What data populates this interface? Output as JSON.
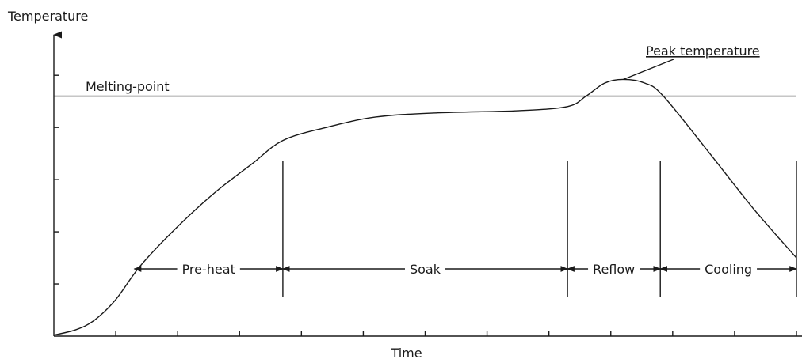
{
  "chart_data": {
    "type": "line",
    "title": "",
    "xlabel": "Time",
    "ylabel": "Temperature",
    "grid": false,
    "xlim": [
      0,
      12
    ],
    "ylim": [
      0,
      5.2
    ],
    "x_ticks": [
      1,
      2,
      3,
      4,
      5,
      6,
      7,
      8,
      9,
      10,
      11,
      12
    ],
    "y_ticks": [
      1,
      2,
      3,
      4,
      5
    ],
    "melting_point": {
      "label": "Melting-point",
      "value": 4.6
    },
    "peak": {
      "label": "Peak temperature",
      "x": 9.2,
      "y": 4.92
    },
    "series": [
      {
        "name": "",
        "points": [
          [
            0,
            0.02
          ],
          [
            0.35,
            0.12
          ],
          [
            0.65,
            0.3
          ],
          [
            1.0,
            0.7
          ],
          [
            1.4,
            1.35
          ],
          [
            2.0,
            2.1
          ],
          [
            2.6,
            2.75
          ],
          [
            3.2,
            3.3
          ],
          [
            3.7,
            3.75
          ],
          [
            4.4,
            4.0
          ],
          [
            5.2,
            4.2
          ],
          [
            6.2,
            4.28
          ],
          [
            7.5,
            4.32
          ],
          [
            8.3,
            4.4
          ],
          [
            8.6,
            4.6
          ],
          [
            8.9,
            4.85
          ],
          [
            9.2,
            4.92
          ],
          [
            9.55,
            4.85
          ],
          [
            9.85,
            4.6
          ],
          [
            10.6,
            3.5
          ],
          [
            11.3,
            2.45
          ],
          [
            12.0,
            1.5
          ]
        ]
      }
    ],
    "phases": [
      {
        "label": "Pre-heat",
        "start": 1.3,
        "end": 3.7
      },
      {
        "label": "Soak",
        "start": 3.7,
        "end": 8.3
      },
      {
        "label": "Reflow",
        "start": 8.3,
        "end": 9.8
      },
      {
        "label": "Cooling",
        "start": 9.8,
        "end": 12.0
      }
    ]
  }
}
